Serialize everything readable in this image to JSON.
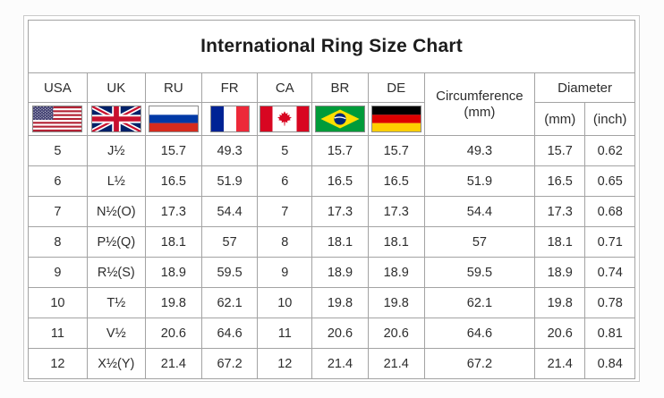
{
  "title": "International Ring Size Chart",
  "table": {
    "country_headers": [
      "USA",
      "UK",
      "RU",
      "FR",
      "CA",
      "BR",
      "DE"
    ],
    "flag_icons": [
      "flag-usa",
      "flag-uk",
      "flag-russia",
      "flag-france",
      "flag-canada",
      "flag-brazil",
      "flag-germany"
    ],
    "circumference": {
      "label": "Circumference",
      "unit": "(mm)"
    },
    "diameter": {
      "label": "Diameter",
      "units": [
        "(mm)",
        "(inch)"
      ]
    },
    "column_keys": [
      "usa",
      "uk",
      "ru",
      "fr",
      "ca",
      "br",
      "de",
      "circumference-mm",
      "diameter-mm",
      "diameter-inch"
    ]
  },
  "chart_data": {
    "type": "table",
    "title": "International Ring Size Chart",
    "columns": [
      "USA",
      "UK",
      "RU",
      "FR",
      "CA",
      "BR",
      "DE",
      "Circumference (mm)",
      "Diameter (mm)",
      "Diameter (inch)"
    ],
    "rows": [
      [
        "5",
        "J½",
        "15.7",
        "49.3",
        "5",
        "15.7",
        "15.7",
        "49.3",
        "15.7",
        "0.62"
      ],
      [
        "6",
        "L½",
        "16.5",
        "51.9",
        "6",
        "16.5",
        "16.5",
        "51.9",
        "16.5",
        "0.65"
      ],
      [
        "7",
        "N½(O)",
        "17.3",
        "54.4",
        "7",
        "17.3",
        "17.3",
        "54.4",
        "17.3",
        "0.68"
      ],
      [
        "8",
        "P½(Q)",
        "18.1",
        "57",
        "8",
        "18.1",
        "18.1",
        "57",
        "18.1",
        "0.71"
      ],
      [
        "9",
        "R½(S)",
        "18.9",
        "59.5",
        "9",
        "18.9",
        "18.9",
        "59.5",
        "18.9",
        "0.74"
      ],
      [
        "10",
        "T½",
        "19.8",
        "62.1",
        "10",
        "19.8",
        "19.8",
        "62.1",
        "19.8",
        "0.78"
      ],
      [
        "11",
        "V½",
        "20.6",
        "64.6",
        "11",
        "20.6",
        "20.6",
        "64.6",
        "20.6",
        "0.81"
      ],
      [
        "12",
        "X½(Y)",
        "21.4",
        "67.2",
        "12",
        "21.4",
        "21.4",
        "67.2",
        "21.4",
        "0.84"
      ]
    ]
  },
  "colors": {
    "table_border": "#a3a3a3",
    "outer_border": "#c9c9c9",
    "text": "#2d2d2d"
  }
}
